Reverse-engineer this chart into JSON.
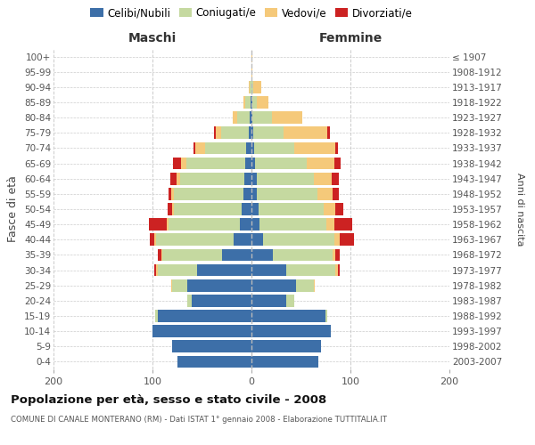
{
  "age_groups": [
    "0-4",
    "5-9",
    "10-14",
    "15-19",
    "20-24",
    "25-29",
    "30-34",
    "35-39",
    "40-44",
    "45-49",
    "50-54",
    "55-59",
    "60-64",
    "65-69",
    "70-74",
    "75-79",
    "80-84",
    "85-89",
    "90-94",
    "95-99",
    "100+"
  ],
  "birth_years": [
    "2003-2007",
    "1998-2002",
    "1993-1997",
    "1988-1992",
    "1983-1987",
    "1978-1982",
    "1973-1977",
    "1968-1972",
    "1963-1967",
    "1958-1962",
    "1953-1957",
    "1948-1952",
    "1943-1947",
    "1938-1942",
    "1933-1937",
    "1928-1932",
    "1923-1927",
    "1918-1922",
    "1913-1917",
    "1908-1912",
    "≤ 1907"
  ],
  "colors": {
    "celibi": "#3d6fa8",
    "coniugati": "#c5d9a0",
    "vedovi": "#f5c97a",
    "divorziati": "#cc2222"
  },
  "maschi_celibi": [
    75,
    80,
    100,
    95,
    60,
    65,
    55,
    30,
    18,
    12,
    10,
    8,
    7,
    6,
    5,
    3,
    2,
    1,
    0,
    0,
    0
  ],
  "maschi_coniugati": [
    0,
    0,
    0,
    2,
    5,
    15,
    40,
    60,
    78,
    72,
    68,
    70,
    65,
    60,
    42,
    28,
    12,
    5,
    2,
    0,
    0
  ],
  "maschi_vedovi": [
    0,
    0,
    0,
    0,
    0,
    1,
    1,
    1,
    2,
    2,
    2,
    3,
    4,
    5,
    10,
    5,
    5,
    2,
    1,
    0,
    0
  ],
  "maschi_divorziati": [
    0,
    0,
    0,
    0,
    0,
    0,
    2,
    4,
    5,
    18,
    5,
    3,
    6,
    8,
    2,
    2,
    0,
    0,
    0,
    0,
    0
  ],
  "femmine_celibi": [
    68,
    70,
    80,
    75,
    35,
    45,
    35,
    22,
    12,
    8,
    7,
    5,
    5,
    4,
    3,
    2,
    1,
    1,
    0,
    0,
    0
  ],
  "femmine_coniugati": [
    0,
    0,
    0,
    2,
    8,
    18,
    50,
    60,
    72,
    68,
    66,
    62,
    58,
    52,
    40,
    30,
    20,
    4,
    2,
    0,
    0
  ],
  "femmine_vedovi": [
    0,
    0,
    0,
    0,
    0,
    1,
    2,
    3,
    5,
    8,
    12,
    15,
    18,
    28,
    42,
    45,
    30,
    12,
    8,
    1,
    1
  ],
  "femmine_divorziati": [
    0,
    0,
    0,
    0,
    0,
    0,
    2,
    4,
    15,
    18,
    8,
    6,
    7,
    6,
    2,
    2,
    0,
    0,
    0,
    0,
    0
  ],
  "title": "Popolazione per età, sesso e stato civile - 2008",
  "subtitle": "COMUNE DI CANALE MONTERANO (RM) - Dati ISTAT 1° gennaio 2008 - Elaborazione TUTTITALIA.IT",
  "header_left": "Maschi",
  "header_right": "Femmine",
  "ylabel_left": "Fasce di età",
  "ylabel_right": "Anni di nascita",
  "xlim": 200,
  "legend_labels": [
    "Celibi/Nubili",
    "Coniugati/e",
    "Vedovi/e",
    "Divorziati/e"
  ],
  "bg_color": "#ffffff",
  "grid_color": "#cccccc"
}
